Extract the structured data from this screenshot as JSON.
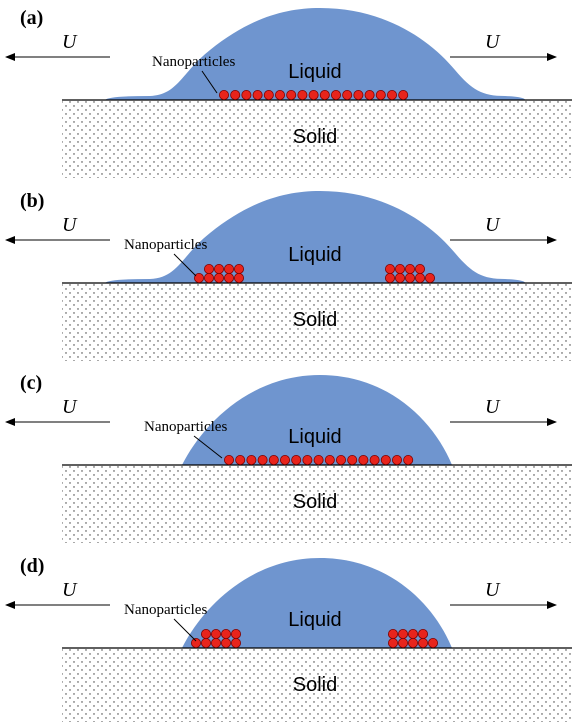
{
  "panels": [
    {
      "label": "(a)",
      "left_velocity": "U",
      "right_velocity": "U",
      "annotation": "Nanoparticles",
      "liquid": "Liquid",
      "solid": "Solid"
    },
    {
      "label": "(b)",
      "left_velocity": "U",
      "right_velocity": "U",
      "annotation": "Nanoparticles",
      "liquid": "Liquid",
      "solid": "Solid"
    },
    {
      "label": "(c)",
      "left_velocity": "U",
      "right_velocity": "U",
      "annotation": "Nanoparticles",
      "liquid": "Liquid",
      "solid": "Solid"
    },
    {
      "label": "(d)",
      "left_velocity": "U",
      "right_velocity": "U",
      "annotation": "Nanoparticles",
      "liquid": "Liquid",
      "solid": "Solid"
    }
  ]
}
